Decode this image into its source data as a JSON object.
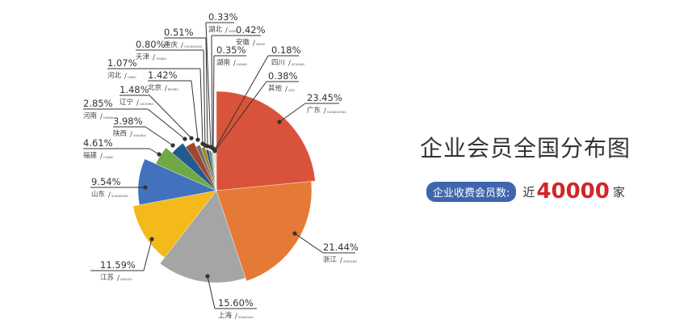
{
  "chart_data": {
    "type": "pie",
    "title": "企业会员全国分布图",
    "slices": [
      {
        "name": "广东",
        "en": "GUANGDONG",
        "value": 23.45,
        "label": "23.45%",
        "color": "#d9533b"
      },
      {
        "name": "浙江",
        "en": "ZHEJIANG",
        "value": 21.44,
        "label": "21.44%",
        "color": "#e57a36"
      },
      {
        "name": "上海",
        "en": "SHANGHAI",
        "value": 15.6,
        "label": "15.60%",
        "color": "#a5a5a5"
      },
      {
        "name": "江苏",
        "en": "JIANGSU",
        "value": 11.59,
        "label": "11.59%",
        "color": "#f4b91b"
      },
      {
        "name": "山东",
        "en": "SHANDONG",
        "value": 9.54,
        "label": "9.54%",
        "color": "#4272be"
      },
      {
        "name": "福建",
        "en": "FUJIAN",
        "value": 4.61,
        "label": "4.61%",
        "color": "#6fa844"
      },
      {
        "name": "陕西",
        "en": "SHAANXI",
        "value": 3.98,
        "label": "3.98%",
        "color": "#245b8f"
      },
      {
        "name": "河南",
        "en": "HENAN",
        "value": 2.85,
        "label": "2.85%",
        "color": "#a3452a"
      },
      {
        "name": "辽宁",
        "en": "LIAONING",
        "value": 1.48,
        "label": "1.48%",
        "color": "#6e6e6e"
      },
      {
        "name": "北京",
        "en": "BEIJING",
        "value": 1.42,
        "label": "1.42%",
        "color": "#a8851e"
      },
      {
        "name": "河北",
        "en": "HEBEI",
        "value": 1.07,
        "label": "1.07%",
        "color": "#2f4f8a"
      },
      {
        "name": "天津",
        "en": "TIANJIN",
        "value": 0.8,
        "label": "0.80%",
        "color": "#4d7a31"
      },
      {
        "name": "重庆",
        "en": "CHONGQING",
        "value": 0.51,
        "label": "0.51%",
        "color": "#5b8fd0"
      },
      {
        "name": "湖北",
        "en": "HUBEI",
        "value": 0.33,
        "label": "0.33%",
        "color": "#e8a070"
      },
      {
        "name": "安徽",
        "en": "ANHUI",
        "value": 0.42,
        "label": "0.42%",
        "color": "#b8b8b8"
      },
      {
        "name": "湖南",
        "en": "HUNAN",
        "value": 0.35,
        "label": "0.35%",
        "color": "#f5cf6a"
      },
      {
        "name": "四川",
        "en": "SICHUAN",
        "value": 0.18,
        "label": "0.18%",
        "color": "#7fa4d8"
      },
      {
        "name": "其他",
        "en": "QITA",
        "value": 0.38,
        "label": "0.38%",
        "color": "#93c47d"
      }
    ]
  },
  "summary": {
    "badge": "企业收费会员数:",
    "prefix": "近",
    "count": "40000",
    "unit": "家",
    "count_color": "#d0262c",
    "badge_color": "#3f66ad"
  }
}
